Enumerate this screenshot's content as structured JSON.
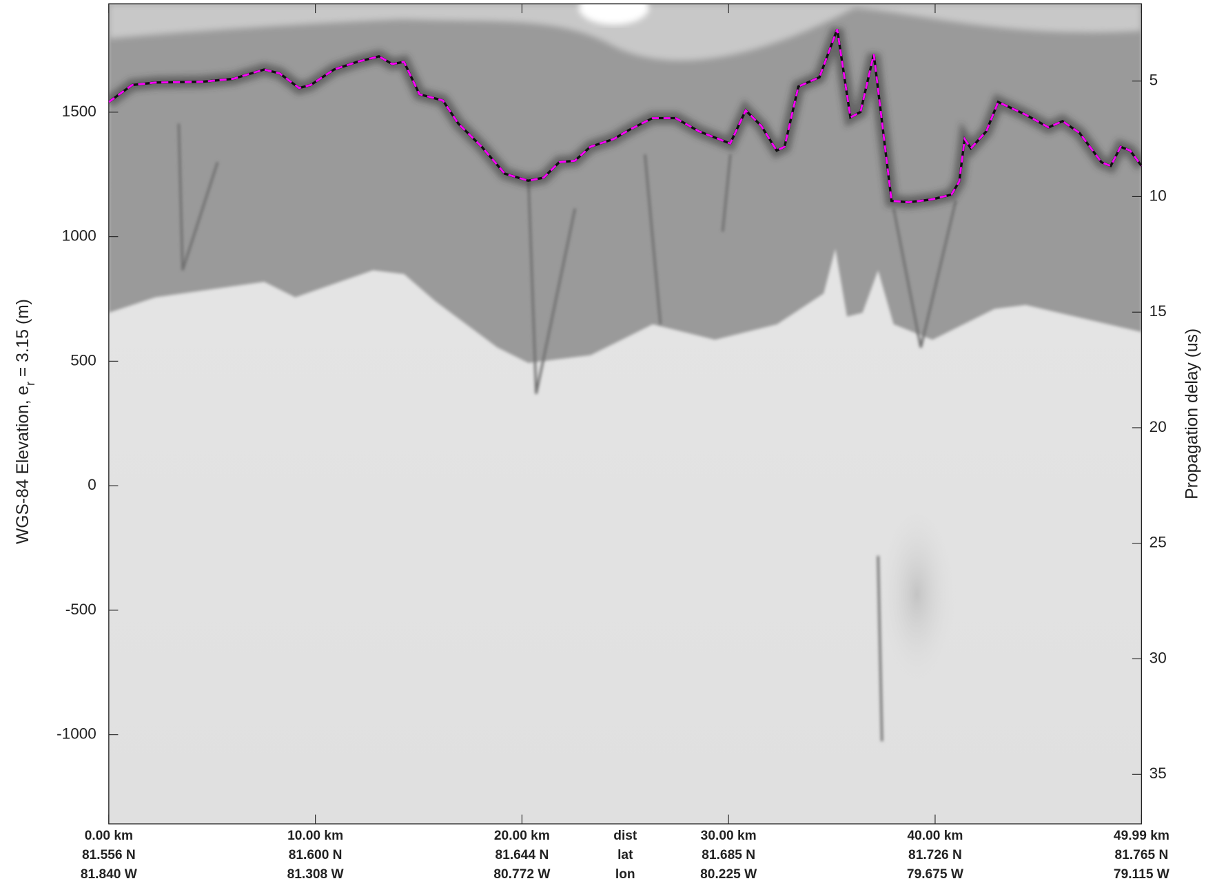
{
  "chart_data": {
    "type": "line",
    "ylabel": {
      "text": "WGS-84 Elevation, e",
      "sub": "r",
      "rest": " = 3.15 (m)"
    },
    "y2label": "Propagation delay (us)",
    "xlim": [
      0,
      49.99
    ],
    "xticks": [
      {
        "value": 0,
        "label": "0.00 km"
      },
      {
        "value": 10,
        "label": "10.00 km"
      },
      {
        "value": 20,
        "label": "20.00 km"
      },
      {
        "value": 30,
        "label": "30.00 km"
      },
      {
        "value": 40,
        "label": "40.00 km"
      },
      {
        "value": 49.99,
        "label": "49.99 km"
      }
    ],
    "x_row_names": [
      "dist",
      "lat",
      "lon"
    ],
    "lat_labels": [
      "81.556 N",
      "81.600 N",
      "81.644 N",
      "81.685 N",
      "81.726 N",
      "81.765 N"
    ],
    "lon_labels": [
      "81.840 W",
      "81.308 W",
      "80.772 W",
      "80.225 W",
      "79.675 W",
      "79.115 W"
    ],
    "ylim": [
      -1358,
      1935
    ],
    "yticks": [
      -1000,
      -500,
      0,
      500,
      1000,
      1500
    ],
    "y2lim": [
      1.66,
      37.14
    ],
    "y2_inverted": true,
    "y2ticks": [
      5,
      10,
      15,
      20,
      25,
      30,
      35
    ],
    "x": [
      0,
      1.13,
      2.26,
      4.51,
      6.02,
      7.52,
      8.27,
      9.21,
      9.77,
      10.9,
      12.03,
      13.08,
      13.72,
      14.29,
      15.04,
      16.17,
      16.92,
      18.05,
      19.17,
      20.3,
      21.05,
      21.8,
      22.56,
      23.31,
      24.44,
      25.19,
      26.32,
      27.44,
      28.57,
      30.08,
      30.83,
      31.58,
      32.33,
      32.71,
      33.38,
      34.4,
      35.26,
      35.9,
      36.39,
      37.03,
      37.89,
      38.72,
      39.85,
      40.79,
      41.17,
      41.43,
      41.73,
      42.48,
      43.05,
      44.36,
      45.49,
      46.17,
      46.99,
      48.05,
      48.5,
      48.98,
      49.44,
      49.99
    ],
    "series": [
      {
        "color": "#ff00ff",
        "values": [
          1541,
          1609,
          1619,
          1622,
          1634,
          1671,
          1656,
          1597,
          1609,
          1671,
          1702,
          1724,
          1693,
          1702,
          1572,
          1547,
          1454,
          1361,
          1253,
          1225,
          1237,
          1299,
          1305,
          1361,
          1392,
          1429,
          1476,
          1476,
          1423,
          1374,
          1507,
          1445,
          1346,
          1361,
          1603,
          1640,
          1833,
          1479,
          1501,
          1733,
          1144,
          1138,
          1150,
          1169,
          1222,
          1392,
          1355,
          1423,
          1541,
          1491,
          1439,
          1464,
          1417,
          1299,
          1284,
          1361,
          1346,
          1284
        ]
      }
    ]
  }
}
